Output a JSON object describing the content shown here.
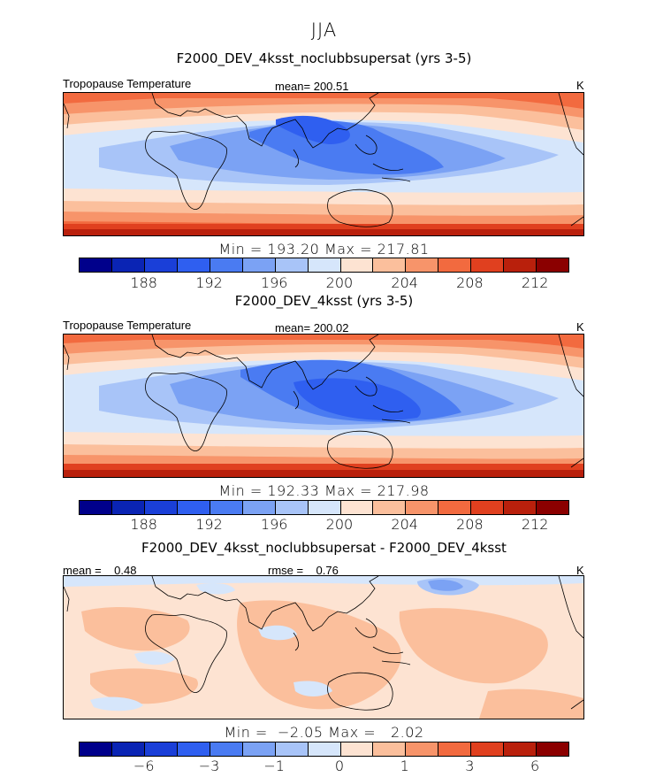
{
  "season": "JJA",
  "panels": [
    {
      "title": "F2000_DEV_4ksst_noclubbsupersat (yrs 3-5)",
      "left_label": "Tropopause Temperature",
      "mean_label": "mean= 200.51",
      "unit": "K",
      "minmax": "Min = 193.20 Max = 217.81"
    },
    {
      "title": "F2000_DEV_4ksst (yrs 3-5)",
      "left_label": "Tropopause Temperature",
      "mean_label": "mean= 200.02",
      "unit": "K",
      "minmax": "Min = 192.33 Max = 217.98"
    },
    {
      "title": "F2000_DEV_4ksst_noclubbsupersat - F2000_DEV_4ksst",
      "left_label": "mean =    0.48",
      "mean_label": "rmse =    0.76",
      "unit": "K",
      "minmax": "Min =  −2.05 Max =   2.02"
    }
  ],
  "colorbar_colors": [
    "#00008b",
    "#0a24b4",
    "#1a3fd8",
    "#2f5ff0",
    "#4a7bf2",
    "#7ba2f4",
    "#a8c4f8",
    "#d6e6fb",
    "#fde3d2",
    "#fbbf9c",
    "#f7946a",
    "#f26a3f",
    "#e0401f",
    "#b9200c",
    "#8b0000"
  ],
  "colorbar_ticks_abs": [
    "188",
    "192",
    "196",
    "200",
    "204",
    "208",
    "212"
  ],
  "colorbar_ticks_diff": [
    "−6",
    "−3",
    "−1",
    "0",
    "1",
    "3",
    "6"
  ]
}
